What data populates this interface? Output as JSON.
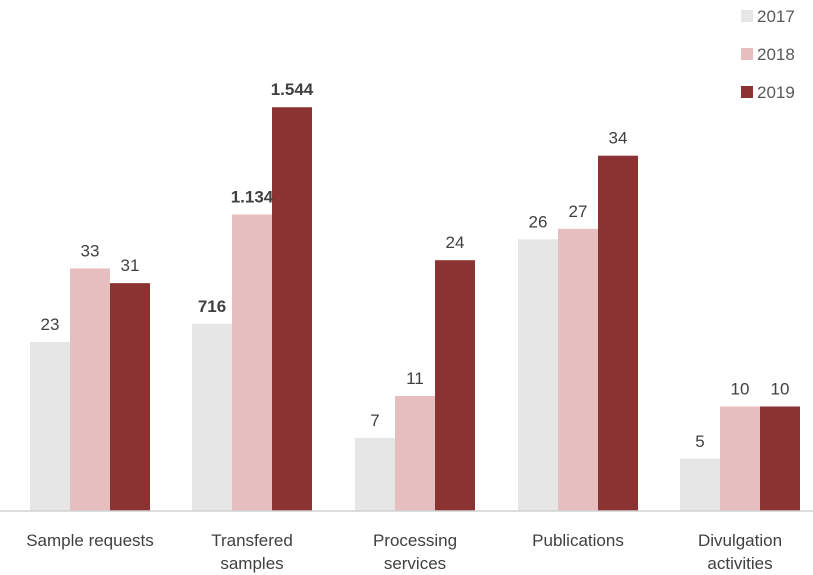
{
  "chart_data": {
    "type": "bar",
    "categories": [
      [
        "Sample requests"
      ],
      [
        "Transfered",
        "samples"
      ],
      [
        "Processing",
        "services"
      ],
      [
        "Publications"
      ],
      [
        "Divulgation",
        "activities"
      ]
    ],
    "series": [
      {
        "name": "2017",
        "color": "#e6e6e6",
        "values": [
          23,
          716,
          7,
          26,
          5
        ],
        "labels": [
          "23",
          "716",
          "7",
          "26",
          "5"
        ]
      },
      {
        "name": "2018",
        "color": "#e6bec0",
        "values": [
          33,
          1134,
          11,
          27,
          10
        ],
        "labels": [
          "33",
          "1.134",
          "11",
          "27",
          "10"
        ]
      },
      {
        "name": "2019",
        "color": "#8b3333",
        "values": [
          31,
          1544,
          24,
          34,
          10
        ],
        "labels": [
          "31",
          "1.544",
          "24",
          "34",
          "10"
        ]
      }
    ],
    "bold_value_category": 1,
    "legend_position": "top-right",
    "grid": false,
    "title": "",
    "xlabel": "",
    "ylabel": ""
  }
}
